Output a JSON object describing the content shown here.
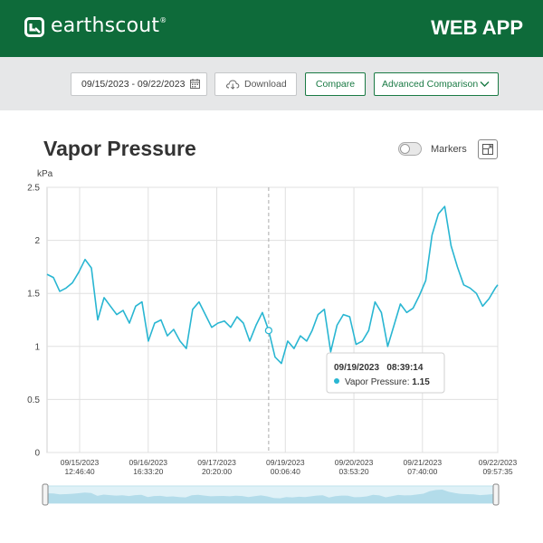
{
  "header": {
    "logo_text": "earthscout",
    "logo_mark": "®",
    "app_label": "WEB APP",
    "logo_icon": "earthscout-logo-icon"
  },
  "toolbar": {
    "date_range": "09/15/2023 - 09/22/2023",
    "download_label": "Download",
    "compare_label": "Compare",
    "advanced_label": "Advanced Comparison",
    "icons": [
      "calendar-icon",
      "cloud-download-icon",
      "chevron-down-icon"
    ]
  },
  "chart_header": {
    "title": "Vapor Pressure",
    "markers_label": "Markers",
    "markers_on": false
  },
  "colors": {
    "brand_green": "#0e6b3a",
    "series": "#29b6d2",
    "toolbar_bg": "#e6e7e8"
  },
  "tooltip": {
    "datetime": "09/19/2023   08:39:14",
    "series_name": "Vapor Pressure:",
    "value": "1.15"
  },
  "chart_data": {
    "type": "line",
    "title": "Vapor Pressure",
    "ylabel": "kPa",
    "ylim": [
      0,
      2.5
    ],
    "y_ticks": [
      "0",
      "0.5",
      "1",
      "1.5",
      "2",
      "2.5"
    ],
    "x_ticks": [
      {
        "date": "09/15/2023",
        "time": "12:46:40"
      },
      {
        "date": "09/16/2023",
        "time": "16:33:20"
      },
      {
        "date": "09/17/2023",
        "time": "20:20:00"
      },
      {
        "date": "09/19/2023",
        "time": "00:06:40"
      },
      {
        "date": "09/20/2023",
        "time": "03:53:20"
      },
      {
        "date": "09/21/2023",
        "time": "07:40:00"
      },
      {
        "date": "09/22/2023",
        "time": "09:57:35"
      }
    ],
    "grid": true,
    "series": [
      {
        "name": "Vapor Pressure",
        "x": [
          "2023-09-15 00:00",
          "2023-09-15 02:30",
          "2023-09-15 05:00",
          "2023-09-15 07:30",
          "2023-09-15 10:00",
          "2023-09-15 12:30",
          "2023-09-15 15:00",
          "2023-09-15 17:30",
          "2023-09-15 20:00",
          "2023-09-15 22:30",
          "2023-09-16 01:00",
          "2023-09-16 03:30",
          "2023-09-16 06:00",
          "2023-09-16 08:30",
          "2023-09-16 11:00",
          "2023-09-16 13:30",
          "2023-09-16 16:00",
          "2023-09-16 18:30",
          "2023-09-16 21:00",
          "2023-09-16 23:30",
          "2023-09-17 02:00",
          "2023-09-17 04:30",
          "2023-09-17 07:00",
          "2023-09-17 09:30",
          "2023-09-17 12:00",
          "2023-09-17 14:30",
          "2023-09-17 17:00",
          "2023-09-17 19:30",
          "2023-09-17 22:00",
          "2023-09-18 00:30",
          "2023-09-18 03:00",
          "2023-09-18 05:30",
          "2023-09-18 08:00",
          "2023-09-18 10:30",
          "2023-09-18 13:00",
          "2023-09-18 15:30",
          "2023-09-18 18:00",
          "2023-09-18 20:30",
          "2023-09-18 23:00",
          "2023-09-19 01:30",
          "2023-09-19 04:00",
          "2023-09-19 06:30",
          "2023-09-19 08:39",
          "2023-09-19 11:00",
          "2023-09-19 13:30",
          "2023-09-19 16:00",
          "2023-09-19 18:30",
          "2023-09-19 21:00",
          "2023-09-19 23:30",
          "2023-09-20 02:00",
          "2023-09-20 04:30",
          "2023-09-20 07:00",
          "2023-09-20 09:30",
          "2023-09-20 12:00",
          "2023-09-20 14:30",
          "2023-09-20 17:00",
          "2023-09-20 19:30",
          "2023-09-20 22:00",
          "2023-09-21 00:30",
          "2023-09-21 03:00",
          "2023-09-21 05:30",
          "2023-09-21 08:00",
          "2023-09-21 10:30",
          "2023-09-21 13:00",
          "2023-09-21 15:30",
          "2023-09-21 18:00",
          "2023-09-21 20:30",
          "2023-09-21 23:00",
          "2023-09-22 01:30",
          "2023-09-22 04:00",
          "2023-09-22 06:30",
          "2023-09-22 09:00",
          "2023-09-22 09:57"
        ],
        "y": [
          1.68,
          1.65,
          1.52,
          1.55,
          1.6,
          1.7,
          1.82,
          1.74,
          1.25,
          1.46,
          1.38,
          1.3,
          1.34,
          1.22,
          1.38,
          1.42,
          1.05,
          1.22,
          1.25,
          1.1,
          1.16,
          1.05,
          0.98,
          1.35,
          1.42,
          1.3,
          1.18,
          1.22,
          1.24,
          1.18,
          1.28,
          1.22,
          1.05,
          1.2,
          1.32,
          1.15,
          0.9,
          0.84,
          1.05,
          0.98,
          1.1,
          1.05,
          1.15,
          1.3,
          1.35,
          0.95,
          1.2,
          1.3,
          1.28,
          1.02,
          1.05,
          1.15,
          1.42,
          1.32,
          1.0,
          1.2,
          1.4,
          1.32,
          1.36,
          1.48,
          1.62,
          2.05,
          2.25,
          2.32,
          1.95,
          1.75,
          1.58,
          1.55,
          1.5,
          1.38,
          1.45,
          1.55,
          1.58
        ]
      }
    ]
  }
}
